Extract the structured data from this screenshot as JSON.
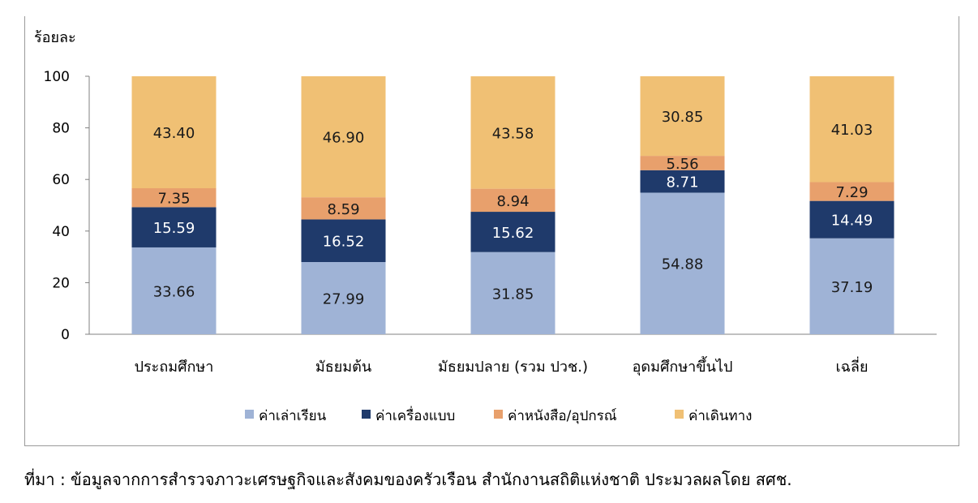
{
  "chart_data": {
    "type": "bar",
    "stacked": true,
    "ylabel": "ร้อยละ",
    "ylim": [
      0,
      100
    ],
    "yticks": [
      0,
      20,
      40,
      60,
      80,
      100
    ],
    "grid": false,
    "legend_position": "bottom",
    "categories": [
      "ประถมศึกษา",
      "มัธยมต้น",
      "มัธยมปลาย (รวม ปวช.)",
      "อุดมศึกษาขึ้นไป",
      "เฉลี่ย"
    ],
    "series": [
      {
        "name": "ค่าเล่าเรียน",
        "color": "#9fb3d6",
        "label_color": "#1a1a1a",
        "values": [
          33.66,
          27.99,
          31.85,
          54.88,
          37.19
        ]
      },
      {
        "name": "ค่าเครื่องแบบ",
        "color": "#1f3a6b",
        "label_color": "#ffffff",
        "values": [
          15.59,
          16.52,
          15.62,
          8.71,
          14.49
        ]
      },
      {
        "name": "ค่าหนังสือ/อุปกรณ์",
        "color": "#e8a06c",
        "label_color": "#1a1a1a",
        "values": [
          7.35,
          8.59,
          8.94,
          5.56,
          7.29
        ]
      },
      {
        "name": "ค่าเดินทาง",
        "color": "#f0c074",
        "label_color": "#1a1a1a",
        "values": [
          43.4,
          46.9,
          43.58,
          30.85,
          41.03
        ]
      }
    ]
  },
  "source_note": "ที่มา : ข้อมูลจากการสำรวจภาวะเศรษฐกิจและสังคมของครัวเรือน สำนักงานสถิติแห่งชาติ ประมวลผลโดย สศช."
}
